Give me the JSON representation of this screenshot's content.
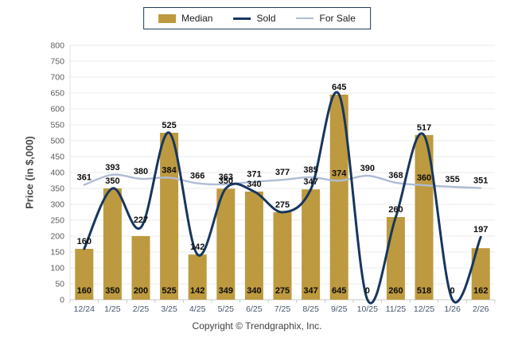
{
  "legend": {
    "items": [
      {
        "label": "Median",
        "type": "bar"
      },
      {
        "label": "Sold",
        "type": "line"
      },
      {
        "label": "For Sale",
        "type": "line"
      }
    ]
  },
  "y_axis_title": "Price (in $,000)",
  "footer": {
    "copyright": "Copyright © Trendgraphix, Inc."
  },
  "colors": {
    "median_bar": "#BD9A3F",
    "sold_line": "#17365D",
    "for_sale_line": "#AFBCD3",
    "grid": "#EBEBEB",
    "axis": "#C9C9C9",
    "x_label": "#44546A",
    "y_label": "#5B5B5B",
    "value_label": "#0d0d0d",
    "legend_border": "#22395c"
  },
  "chart_data": {
    "type": "bar",
    "title": "",
    "xlabel": "",
    "ylabel": "Price (in $,000)",
    "ylim": [
      0,
      800
    ],
    "yticks": [
      0,
      50,
      100,
      150,
      200,
      250,
      300,
      350,
      400,
      450,
      500,
      550,
      600,
      650,
      700,
      750,
      800
    ],
    "grid": true,
    "legend_position": "top",
    "categories": [
      "12/24",
      "1/25",
      "2/25",
      "3/25",
      "4/25",
      "5/25",
      "6/25",
      "7/25",
      "8/25",
      "9/25",
      "10/25",
      "11/25",
      "12/25",
      "1/26",
      "2/26"
    ],
    "series": [
      {
        "name": "Median",
        "type": "bar",
        "values": [
          160,
          350,
          200,
          525,
          142,
          349,
          340,
          275,
          347,
          645,
          0,
          260,
          518,
          0,
          162
        ]
      },
      {
        "name": "Sold",
        "type": "line",
        "values": [
          160,
          350,
          227,
          525,
          142,
          350,
          340,
          275,
          347,
          645,
          0,
          260,
          517,
          0,
          197
        ]
      },
      {
        "name": "For Sale",
        "type": "line",
        "values": [
          361,
          393,
          380,
          384,
          366,
          363,
          371,
          377,
          385,
          374,
          390,
          368,
          360,
          355,
          351
        ]
      }
    ]
  }
}
